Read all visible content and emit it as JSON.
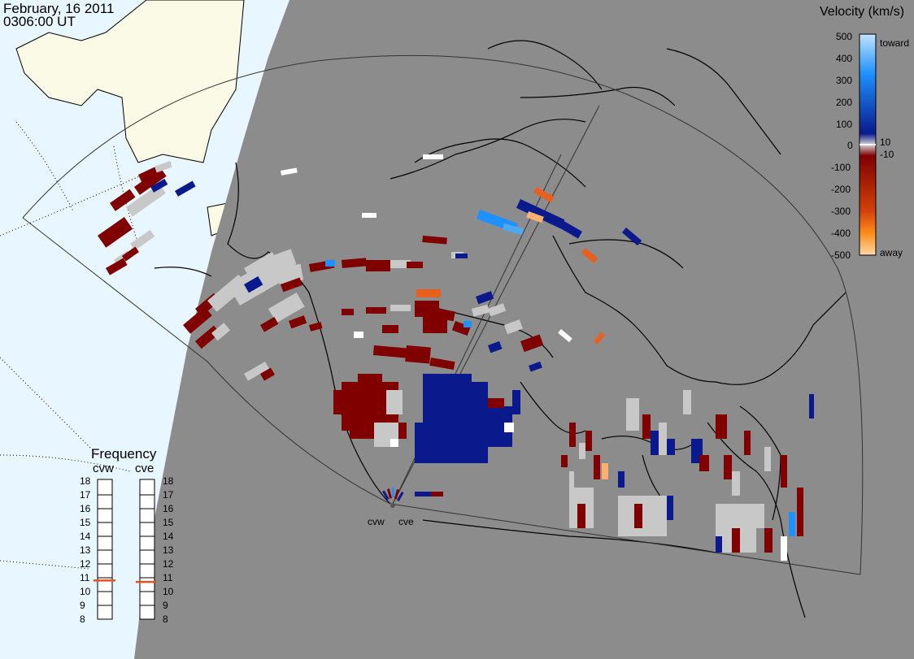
{
  "header": {
    "date": "February, 16 2011",
    "time": "0306:00 UT"
  },
  "colorbar": {
    "title": "Velocity (km/s)",
    "ticks": [
      "500",
      "400",
      "300",
      "200",
      "100",
      "10",
      "0",
      "-10",
      "-100",
      "-200",
      "-300",
      "-400",
      "-500"
    ],
    "toward_label": "toward",
    "away_label": "away",
    "colors": {
      "toward_max": "#bfe4ff",
      "toward_mid": "#1e90ff",
      "toward_min": "#0a1a8c",
      "zero": "#d3d3d3",
      "away_min": "#800000",
      "away_mid": "#d2400a",
      "away_max": "#ffd8a8"
    }
  },
  "frequency_panel": {
    "title": "Frequency",
    "radars": [
      {
        "name": "cvw",
        "freq_mhz": 10.8
      },
      {
        "name": "cve",
        "freq_mhz": 10.7
      }
    ],
    "scale": [
      "18",
      "17",
      "16",
      "15",
      "14",
      "13",
      "12",
      "11",
      "10",
      "9",
      "8"
    ],
    "marker_color": "#e8501e"
  },
  "map": {
    "radar_sites": [
      "cvw",
      "cve"
    ],
    "colors": {
      "ocean_daylight": "#e8f6ff",
      "land_daylight": "#fafae6",
      "night": "#8c8c8c",
      "ground_scatter": "#c8c8c8"
    }
  }
}
